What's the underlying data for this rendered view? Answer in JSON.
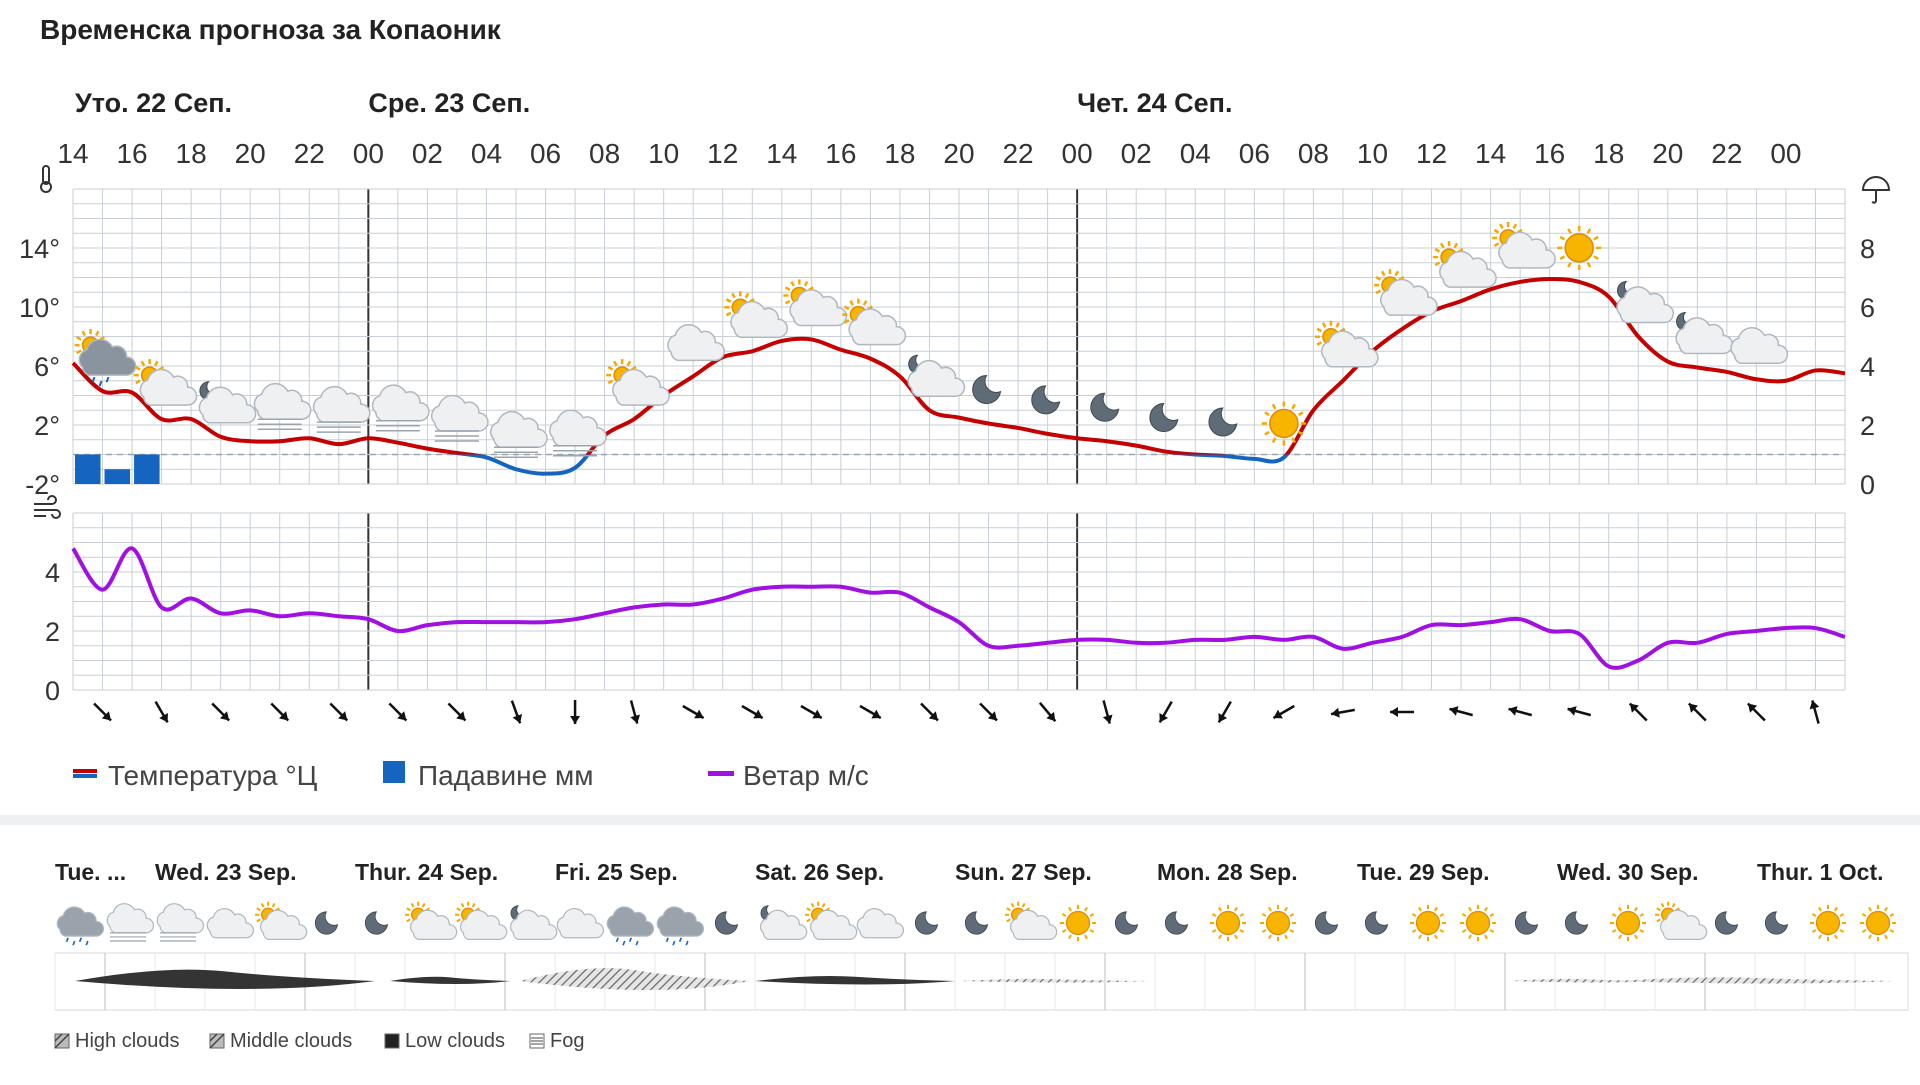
{
  "title": "Временска прогноза за Копаоник",
  "colors": {
    "temp_warm": "#c40000",
    "temp_cold": "#1565c0",
    "precip": "#1565c0",
    "wind": "#a010e0",
    "grid": "#c8cfd6",
    "day_line": "#333333"
  },
  "chart_data": [
    {
      "type": "line",
      "title": "",
      "days": [
        {
          "label": "Уто. 22 Сеп.",
          "hour": 14
        },
        {
          "label": "Сре. 23 Сеп.",
          "hour": 24
        },
        {
          "label": "Чет. 24 Сеп.",
          "hour": 48
        }
      ],
      "hour_ticks": [
        "14",
        "16",
        "18",
        "20",
        "22",
        "00",
        "02",
        "04",
        "06",
        "08",
        "10",
        "12",
        "14",
        "16",
        "18",
        "20",
        "22",
        "00",
        "02",
        "04",
        "06",
        "08",
        "10",
        "12",
        "14",
        "16",
        "18",
        "20",
        "22",
        "00"
      ],
      "temperature_axis": {
        "ticks": [
          "14°",
          "10°",
          "6°",
          "2°",
          "-2°"
        ],
        "values": [
          14,
          10,
          6,
          2,
          -2
        ],
        "ylim": [
          -2,
          18
        ],
        "icon": "thermometer-icon"
      },
      "precip_axis": {
        "ticks": [
          "8",
          "6",
          "4",
          "2",
          "0"
        ],
        "values": [
          8,
          6,
          4,
          2,
          0
        ],
        "ylim": [
          0,
          10
        ],
        "icon": "umbrella-icon"
      },
      "wind_axis": {
        "ticks": [
          "4",
          "2",
          "0"
        ],
        "values": [
          4,
          2,
          0
        ],
        "ylim": [
          0,
          6
        ],
        "icon": "wind-icon"
      },
      "series": [
        {
          "name": "Температура °Ц",
          "x": [
            14,
            15,
            16,
            17,
            18,
            19,
            20,
            21,
            22,
            23,
            24,
            25,
            26,
            27,
            28,
            29,
            30,
            31,
            32,
            33,
            34,
            35,
            36,
            37,
            38,
            39,
            40,
            41,
            42,
            43,
            44,
            45,
            46,
            47,
            48,
            49,
            50,
            51,
            52,
            53,
            54,
            55,
            56,
            57,
            58,
            59,
            60,
            61,
            62,
            63,
            64,
            65,
            66,
            67,
            68,
            69,
            70,
            71,
            72,
            73,
            74
          ],
          "values": [
            6.2,
            4.3,
            4.2,
            2.4,
            2.4,
            1.2,
            0.9,
            0.9,
            1.1,
            0.7,
            1.1,
            0.8,
            0.4,
            0.1,
            -0.2,
            -1.0,
            -1.3,
            -0.9,
            1.3,
            2.4,
            4.0,
            5.3,
            6.6,
            7.0,
            7.7,
            7.8,
            7.1,
            6.5,
            5.3,
            3.0,
            2.5,
            2.1,
            1.8,
            1.4,
            1.1,
            0.9,
            0.6,
            0.2,
            0.0,
            -0.1,
            -0.3,
            -0.2,
            3.0,
            5.0,
            7.0,
            8.5,
            9.7,
            10.4,
            11.2,
            11.7,
            11.9,
            11.7,
            10.7,
            8.0,
            6.3,
            5.9,
            5.6,
            5.1,
            5.0,
            5.7,
            5.5
          ]
        },
        {
          "name": "Падавине мм",
          "x": [
            14,
            15,
            16
          ],
          "values": [
            1,
            0.5,
            1
          ]
        },
        {
          "name": "Ветар м/с",
          "x": [
            14,
            15,
            16,
            17,
            18,
            19,
            20,
            21,
            22,
            23,
            24,
            25,
            26,
            27,
            28,
            29,
            30,
            31,
            32,
            33,
            34,
            35,
            36,
            37,
            38,
            39,
            40,
            41,
            42,
            43,
            44,
            45,
            46,
            47,
            48,
            49,
            50,
            51,
            52,
            53,
            54,
            55,
            56,
            57,
            58,
            59,
            60,
            61,
            62,
            63,
            64,
            65,
            66,
            67,
            68,
            69,
            70,
            71,
            72,
            73,
            74
          ],
          "values": [
            4.8,
            3.4,
            4.8,
            2.8,
            3.1,
            2.6,
            2.7,
            2.5,
            2.6,
            2.5,
            2.4,
            2.0,
            2.2,
            2.3,
            2.3,
            2.3,
            2.3,
            2.4,
            2.6,
            2.8,
            2.9,
            2.9,
            3.1,
            3.4,
            3.5,
            3.5,
            3.5,
            3.3,
            3.3,
            2.8,
            2.3,
            1.5,
            1.5,
            1.6,
            1.7,
            1.7,
            1.6,
            1.6,
            1.7,
            1.7,
            1.8,
            1.7,
            1.8,
            1.4,
            1.6,
            1.8,
            2.2,
            2.2,
            2.3,
            2.4,
            2.0,
            1.9,
            0.8,
            1.0,
            1.6,
            1.6,
            1.9,
            2.0,
            2.1,
            2.1,
            1.8
          ]
        }
      ],
      "weather_icons": [
        "sun-cloud-rain",
        "sun-cloud",
        "moon-cloud",
        "fog",
        "fog",
        "fog",
        "fog",
        "fog",
        "fog",
        "sun-cloud",
        "cloud",
        "sun-cloud",
        "sun-cloud",
        "sun-cloud",
        "moon-cloud",
        "moon",
        "moon",
        "moon",
        "moon",
        "moon",
        "sun",
        "sun-cloud",
        "sun-cloud",
        "sun-cloud",
        "sun-cloud",
        "sun",
        "moon-cloud",
        "moon-cloud",
        "cloud"
      ],
      "wind_direction_deg": [
        135,
        150,
        135,
        135,
        135,
        135,
        135,
        160,
        180,
        165,
        120,
        120,
        120,
        120,
        135,
        135,
        140,
        165,
        210,
        210,
        240,
        260,
        270,
        285,
        285,
        285,
        315,
        315,
        315,
        345
      ],
      "legend": [
        {
          "label": "Температура °Ц",
          "marker": "line-red-blue"
        },
        {
          "label": "Падавине мм",
          "marker": "square-blue"
        },
        {
          "label": "Ветар м/с",
          "marker": "line-purple"
        }
      ]
    }
  ],
  "overview": {
    "days": [
      "Tue. ...",
      "Wed. 23 Sep.",
      "Thur. 24 Sep.",
      "Fri. 25 Sep.",
      "Sat. 26 Sep.",
      "Sun. 27 Sep.",
      "Mon. 28 Sep.",
      "Tue. 29 Sep.",
      "Wed. 30 Sep.",
      "Thur. 1 Oct."
    ],
    "icons": [
      "cloud-rain",
      "fog",
      "fog",
      "cloud",
      "sun-cloud",
      "moon",
      "moon",
      "sun-cloud",
      "sun-cloud",
      "moon-cloud",
      "cloud",
      "cloud-rain",
      "cloud-rain",
      "moon",
      "moon-cloud",
      "sun-cloud",
      "cloud",
      "moon",
      "moon",
      "sun-cloud",
      "sun",
      "moon",
      "moon",
      "sun",
      "sun",
      "moon",
      "moon",
      "sun",
      "sun",
      "moon",
      "moon",
      "sun",
      "sun-cloud",
      "moon",
      "moon",
      "sun",
      "sun"
    ],
    "cloud_legend": [
      {
        "label": "High clouds",
        "icon": "high-clouds-icon"
      },
      {
        "label": "Middle clouds",
        "icon": "middle-clouds-icon"
      },
      {
        "label": "Low clouds",
        "icon": "low-clouds-icon"
      },
      {
        "label": "Fog",
        "icon": "fog-icon"
      }
    ]
  }
}
